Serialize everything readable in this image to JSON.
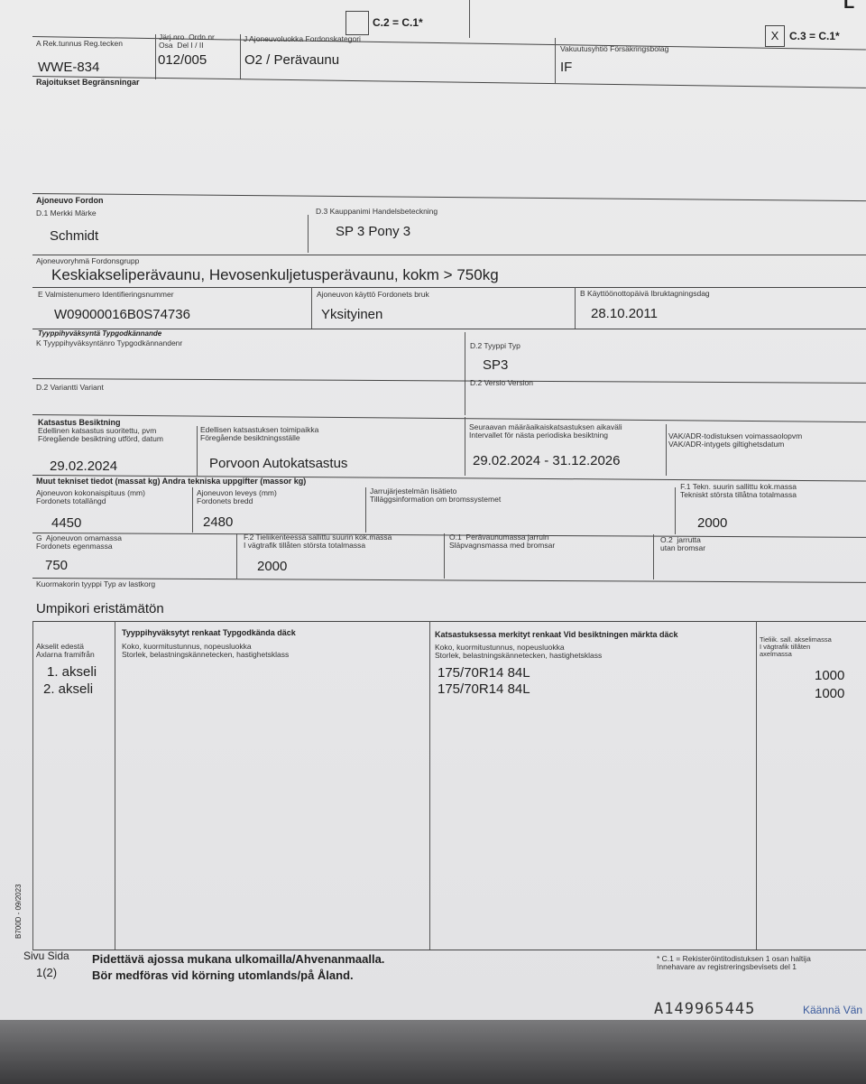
{
  "header": {
    "c2_label": "C.2 = C.1*",
    "c2_checked": false,
    "c3_label": "C.3 = C.1*",
    "c3_mark": "X",
    "c3_checked": true,
    "corner_mark": "L"
  },
  "row_a": {
    "reg_label": "A Rek.tunnus  Reg.tecken",
    "reg_value": "WWE-834",
    "ord_label": "Järj.nro  Ordn.nr\nOsa  Del I / II",
    "ord_value": "012/005",
    "cat_label": "J Ajoneuvoluokka  Fordonskategori",
    "cat_value": "O2 / Perävaunu",
    "ins_label": "Vakuutusyhtiö  Försäkringsbolag",
    "ins_value": "IF"
  },
  "restrictions": {
    "label": "Rajoitukset  Begränsningar"
  },
  "vehicle": {
    "section": "Ajoneuvo  Fordon",
    "make_label": "D.1 Merkki  Märke",
    "make_value": "Schmidt",
    "trade_label": "D.3  Kauppanimi  Handelsbeteckning",
    "trade_value": "SP 3 Pony 3",
    "group_label": "Ajoneuvoryhmä  Fordonsgrupp",
    "group_value": "Keskiakseliperävaunu, Hevosenkuljetusperävaunu, kokm > 750kg",
    "vin_label": "E  Valmistenumero  Identifieringsnummer",
    "vin_value": "W09000016B0S74736",
    "use_label": "Ajoneuvon käyttö  Fordonets bruk",
    "use_value": "Yksityinen",
    "date_label": "B  Käyttöönottopäivä  Ibruktagningsdag",
    "date_value": "28.10.2011"
  },
  "type_approval": {
    "section": "Tyyppihyväksyntä  Typgodkännande",
    "k_label": "K  Tyyppihyväksyntänro  Typgodkännandenr",
    "type_label": "D.2 Tyyppi  Typ",
    "type_value": "SP3",
    "variant_label": "D.2 Variantti  Variant",
    "version_label": "D.2 Versio  Version"
  },
  "inspection": {
    "section": "Katsastus  Besiktning",
    "prev_label": "Edellinen katsastus suoritettu, pvm\nFöregående besiktning utförd, datum",
    "prev_value": "29.02.2024",
    "place_label": "Edellisen katsastuksen toimipaikka\nFöregående besiktningsställe",
    "place_value": "Porvoon Autokatsastus",
    "next_label": "Seuraavan määräaikaiskatsastuksen aikaväli\nIntervallet för nästa periodiska besiktning",
    "next_value": "29.02.2024 - 31.12.2026",
    "adr_label": "VAK/ADR-todistuksen voimassaolopvm\nVAK/ADR-intygets giltighetsdatum"
  },
  "tech": {
    "section": "Muut tekniset tiedot (massat kg)  Andra tekniska uppgifter (massor kg)",
    "length_label": "Ajoneuvon kokonaispituus (mm)\nFordonets totallängd",
    "length_value": "4450",
    "width_label": "Ajoneuvon leveys (mm)\nFordonets bredd",
    "width_value": "2480",
    "brake_label": "Jarrujärjestelmän lisätieto\nTilläggsinformation om bromssystemet",
    "f1_label": "F.1 Tekn. suurin sallittu kok.massa\nTekniskt största tillåtna totalmassa",
    "f1_value": "2000",
    "g_label": "G  Ajoneuvon omamassa\nFordonets egenmassa",
    "g_value": "750",
    "f2_label": "F.2 Tieliikenteessä sallittu suurin kok.massa\nI vägtrafik tillåten största totalmassa",
    "f2_value": "2000",
    "o1_label": "O.1  Perävaunumassa jarruin\nSläpvagnsmassa med bromsar",
    "o2_label": "O.2  jarrutta\nutan bromsar",
    "body_label": "Kuormakorin tyyppi  Typ av lastkorg",
    "body_value": "Umpikori eristämätön"
  },
  "tyres": {
    "axle_label": "Akselit edestä\nAxlarna framifrån",
    "approved_heading": "Tyyppihyväksytyt renkaat  Typgodkända däck",
    "approved_label": "Koko, kuormitustunnus, nopeusluokka\nStorlek, belastningskännetecken, hastighetsklass",
    "inspected_heading": "Katsastuksessa merkityt renkaat  Vid besiktningen märkta däck",
    "inspected_label": "Koko, kuormitustunnus, nopeusluokka\nStorlek, belastningskännetecken, hastighetsklass",
    "axlemass_label": "Tieliik. sall. akselimassa\nI vägtrafik tillåten\naxelmassa",
    "rows": [
      {
        "axle": "1. akseli",
        "tyre": "175/70R14 84L",
        "mass": "1000"
      },
      {
        "axle": "2. akseli",
        "tyre": "175/70R14 84L",
        "mass": "1000"
      }
    ]
  },
  "footer": {
    "side_code": "B700D - 09/2023",
    "page_label": "Sivu  Sida",
    "page_value": "1(2)",
    "note_fi": "Pidettävä ajossa mukana ulkomailla/Ahvenanmaalla.",
    "note_sv": "Bör medföras vid körning utomlands/på Åland.",
    "c1_note": "* C.1 = Rekisteröintitodistuksen 1 osan haltija\nInnehavare av registreringsbevisets del 1",
    "serial": "A149965445",
    "turn": "Käännä Vän"
  }
}
